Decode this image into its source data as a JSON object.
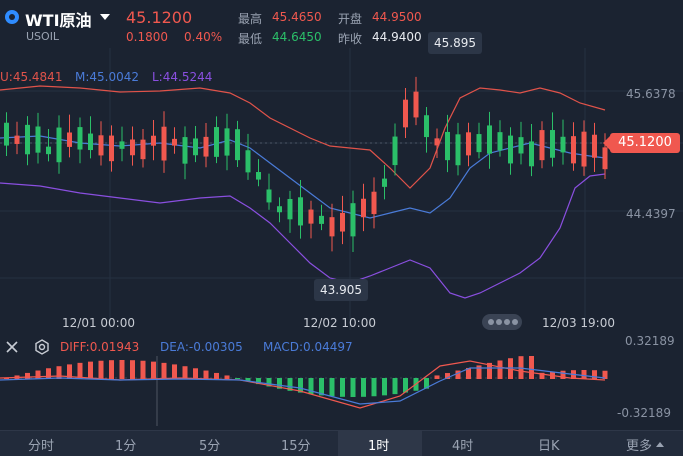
{
  "header": {
    "symbol": "WTI原油",
    "code": "USOIL",
    "price": "45.1200",
    "change": "0.1800",
    "change_pct": "0.40%",
    "high_label": "最高",
    "high": "45.4650",
    "open_label": "开盘",
    "open": "44.9500",
    "low_label": "最低",
    "low": "44.6450",
    "prev_label": "昨收",
    "prev": "44.9400"
  },
  "indicator": {
    "u": "U:45.4841",
    "m": "M:45.0042",
    "l": "L:44.5244"
  },
  "yaxis": {
    "top": "45.6378",
    "mid": "44.4397",
    "current": "45.1200"
  },
  "tooltips": {
    "high": "45.895",
    "low": "43.905"
  },
  "xaxis": {
    "t1": "12/01 00:00",
    "t2": "12/02 10:00",
    "t3": "12/03 19:00"
  },
  "macd": {
    "diff": "DIFF:0.01943",
    "dea": "DEA:-0.00305",
    "macd": "MACD:0.04497",
    "ytop": "0.32189",
    "ybottom": "-0.32189"
  },
  "tabs": [
    "分时",
    "1分",
    "5分",
    "15分",
    "1时",
    "4时",
    "日K",
    "更多"
  ],
  "colors": {
    "up": "#f0584f",
    "down": "#2bbf69",
    "upper_band": "#e0534a",
    "mid_band": "#4a7bd8",
    "lower_band": "#8a4fe0",
    "background": "#1b2331"
  },
  "icons": [
    "close-icon",
    "settings-icon",
    "caret-down-icon"
  ]
}
